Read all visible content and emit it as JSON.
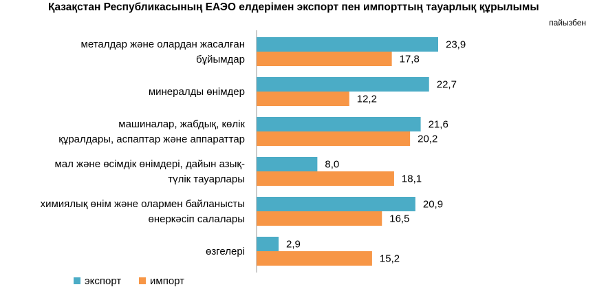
{
  "chart_data": {
    "type": "bar",
    "orientation": "horizontal",
    "title": "Қазақстан Республикасының ЕАЭО елдерімен экспорт пен импорттың тауарлық құрылымы",
    "unit": "пайызбен",
    "categories": [
      [
        "металдар және олардан жасалған",
        "бұйымдар"
      ],
      [
        "минералды өнімдер"
      ],
      [
        "машиналар, жабдық, көлік",
        "құралдары, аспаптар және аппараттар"
      ],
      [
        "мал және өсімдік өнімдері, дайын азық-",
        "түлік тауарлары"
      ],
      [
        "химиялық өнім және олармен байланысты",
        "өнеркәсіп салалары"
      ],
      [
        "өзгелері"
      ]
    ],
    "series": [
      {
        "name": "экспорт",
        "color": "#4BACC6",
        "values": [
          23.9,
          22.7,
          21.6,
          8.0,
          20.9,
          2.9
        ],
        "labels": [
          "23,9",
          "22,7",
          "21,6",
          "8,0",
          "20,9",
          "2,9"
        ]
      },
      {
        "name": "импорт",
        "color": "#F79646",
        "values": [
          17.8,
          12.2,
          20.2,
          18.1,
          16.5,
          15.2
        ],
        "labels": [
          "17,8",
          "12,2",
          "20,2",
          "18,1",
          "16,5",
          "15,2"
        ]
      }
    ],
    "xlim": [
      0,
      30
    ],
    "legend_position": "bottom-left",
    "grid": false
  }
}
